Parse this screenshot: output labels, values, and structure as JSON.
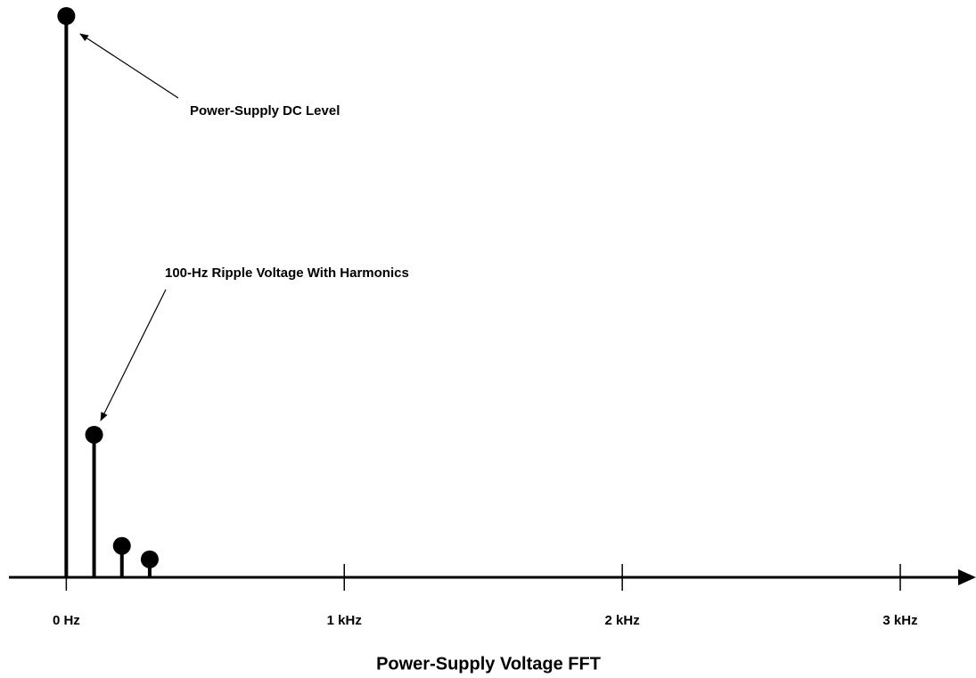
{
  "chart_data": {
    "type": "stem",
    "title": "Power-Supply Voltage FFT",
    "x": [
      0,
      100,
      200,
      300
    ],
    "values": [
      100,
      25.4,
      5.6,
      3.2
    ],
    "color": "#000000",
    "xlim": [
      -200,
      3250
    ],
    "xticks": [
      {
        "value": 0,
        "label": "0 Hz"
      },
      {
        "value": 1000,
        "label": "1 kHz"
      },
      {
        "value": 2000,
        "label": "2 kHz"
      },
      {
        "value": 3000,
        "label": "3 kHz"
      }
    ],
    "ylim": [
      0,
      100
    ],
    "annotations": [
      {
        "text": "Power-Supply DC Level"
      },
      {
        "text": "100-Hz Ripple Voltage With Harmonics"
      }
    ]
  }
}
